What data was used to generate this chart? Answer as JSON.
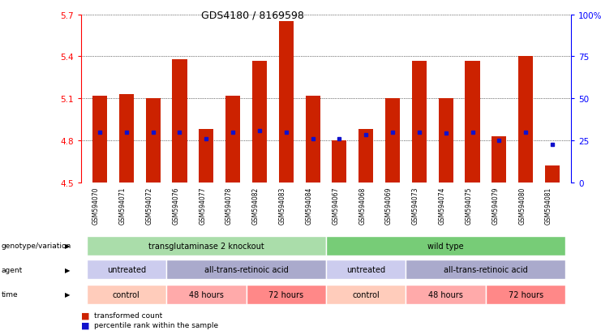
{
  "title": "GDS4180 / 8169598",
  "samples": [
    "GSM594070",
    "GSM594071",
    "GSM594072",
    "GSM594076",
    "GSM594077",
    "GSM594078",
    "GSM594082",
    "GSM594083",
    "GSM594084",
    "GSM594067",
    "GSM594068",
    "GSM594069",
    "GSM594073",
    "GSM594074",
    "GSM594075",
    "GSM594079",
    "GSM594080",
    "GSM594081"
  ],
  "bar_values": [
    5.12,
    5.13,
    5.1,
    5.38,
    4.88,
    5.12,
    5.37,
    5.65,
    5.12,
    4.8,
    4.88,
    5.1,
    5.37,
    5.1,
    5.37,
    4.83,
    5.4,
    4.62
  ],
  "blue_values": [
    4.86,
    4.86,
    4.86,
    4.86,
    4.81,
    4.86,
    4.87,
    4.86,
    4.81,
    4.81,
    4.84,
    4.86,
    4.86,
    4.85,
    4.86,
    4.8,
    4.86,
    4.77
  ],
  "ymin": 4.5,
  "ymax": 5.7,
  "yticks": [
    4.5,
    4.8,
    5.1,
    5.4,
    5.7
  ],
  "right_yticks": [
    0,
    25,
    50,
    75,
    100
  ],
  "bar_color": "#cc2200",
  "blue_color": "#1111cc",
  "plot_bg": "#ffffff",
  "sample_bg": "#d8d8d8",
  "genotype_groups": [
    {
      "label": "transglutaminase 2 knockout",
      "start": 0,
      "end": 8,
      "color": "#aaddaa"
    },
    {
      "label": "wild type",
      "start": 9,
      "end": 17,
      "color": "#77cc77"
    }
  ],
  "agent_groups": [
    {
      "label": "untreated",
      "start": 0,
      "end": 2,
      "color": "#ccccee"
    },
    {
      "label": "all-trans-retinoic acid",
      "start": 3,
      "end": 8,
      "color": "#aaaacc"
    },
    {
      "label": "untreated",
      "start": 9,
      "end": 11,
      "color": "#ccccee"
    },
    {
      "label": "all-trans-retinoic acid",
      "start": 12,
      "end": 17,
      "color": "#aaaacc"
    }
  ],
  "time_groups": [
    {
      "label": "control",
      "start": 0,
      "end": 2,
      "color": "#ffccbb"
    },
    {
      "label": "48 hours",
      "start": 3,
      "end": 5,
      "color": "#ffaaaa"
    },
    {
      "label": "72 hours",
      "start": 6,
      "end": 8,
      "color": "#ff8888"
    },
    {
      "label": "control",
      "start": 9,
      "end": 11,
      "color": "#ffccbb"
    },
    {
      "label": "48 hours",
      "start": 12,
      "end": 14,
      "color": "#ffaaaa"
    },
    {
      "label": "72 hours",
      "start": 15,
      "end": 17,
      "color": "#ff8888"
    }
  ],
  "row_labels": [
    "genotype/variation",
    "agent",
    "time"
  ],
  "legend_items": [
    {
      "label": "transformed count",
      "color": "#cc2200"
    },
    {
      "label": "percentile rank within the sample",
      "color": "#1111cc"
    }
  ]
}
